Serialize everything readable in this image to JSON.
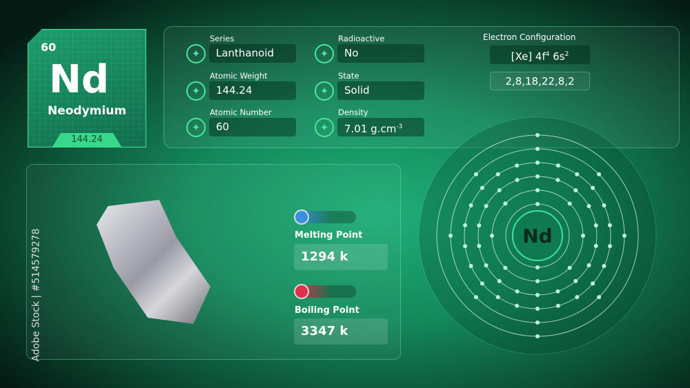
{
  "element": {
    "atomic_number": "60",
    "symbol": "Nd",
    "name": "Neodymium",
    "weight": "144.24"
  },
  "properties": [
    {
      "label": "Series",
      "value": "Lanthanoid",
      "icon": "layers-icon"
    },
    {
      "label": "Atomic Weight",
      "value": "144.24",
      "icon": "atom-weight-icon"
    },
    {
      "label": "Atomic Number",
      "value": "60",
      "icon": "atom-number-icon"
    },
    {
      "label": "Radioactive",
      "value": "No",
      "icon": "radioactive-icon"
    },
    {
      "label": "State",
      "value": "Solid",
      "icon": "cube-icon"
    },
    {
      "label": "Density",
      "value": "7.01 g.cm",
      "sup": "-3",
      "icon": "molecules-icon"
    }
  ],
  "electron": {
    "title": "Electron Configuration",
    "config": "[Xe] 4f",
    "c_sup1": "4",
    "config2": " 6s",
    "c_sup2": "2",
    "shells_text": "2,8,18,22,8,2",
    "shells": [
      2,
      8,
      18,
      22,
      8,
      2
    ]
  },
  "melting": {
    "label": "Melting Point",
    "value": "1294 k",
    "color": "#3a8fe0"
  },
  "boiling": {
    "label": "Boiling Point",
    "value": "3347 k",
    "color": "#e0304a"
  },
  "watermark": {
    "side_text": "Adobe Stock | #514579278"
  }
}
